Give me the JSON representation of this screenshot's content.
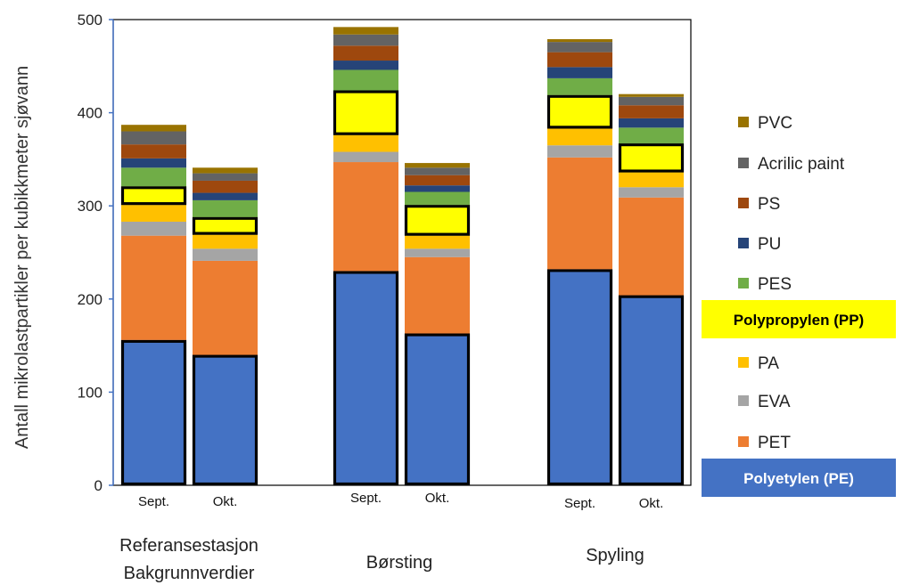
{
  "chart_data": {
    "type": "bar",
    "stacked": true,
    "ylabel": "Antall mikrolastpartikler per kubikkmeter sjøvann",
    "ylim": [
      0,
      500
    ],
    "yticks": [
      0,
      100,
      200,
      300,
      400,
      500
    ],
    "groups": [
      {
        "label": "Referansestasjon\nBakgrunnverdier",
        "label_lines": [
          "Referansestasjon",
          "Bakgrunnverdier"
        ]
      },
      {
        "label": "Børsting",
        "label_lines": [
          "Børsting"
        ]
      },
      {
        "label": "Spyling",
        "label_lines": [
          "Spyling"
        ]
      }
    ],
    "bars": [
      {
        "group": 0,
        "label": "Sept."
      },
      {
        "group": 0,
        "label": "Okt."
      },
      {
        "group": 1,
        "label": "Sept."
      },
      {
        "group": 1,
        "label": "Okt."
      },
      {
        "group": 2,
        "label": "Sept."
      },
      {
        "group": 2,
        "label": "Okt."
      }
    ],
    "series": [
      {
        "name": "Polyetylen (PE)",
        "color": "#4472C4",
        "values": [
          156,
          140,
          230,
          163,
          232,
          204
        ],
        "highlight": true
      },
      {
        "name": "PET",
        "color": "#ED7D31",
        "values": [
          112,
          101,
          117,
          82,
          120,
          105
        ]
      },
      {
        "name": "EVA",
        "color": "#A5A5A5",
        "values": [
          15,
          13,
          11,
          9,
          13,
          11
        ]
      },
      {
        "name": "PA",
        "color": "#FFC000",
        "values": [
          18,
          15,
          18,
          14,
          18,
          16
        ]
      },
      {
        "name": "Polypropylen (PP)",
        "color": "#FFFF00",
        "values": [
          20,
          19,
          48,
          33,
          36,
          31
        ],
        "highlight": true
      },
      {
        "name": "PES",
        "color": "#70AD47",
        "values": [
          20,
          18,
          22,
          14,
          18,
          17
        ]
      },
      {
        "name": "PU",
        "color": "#264478",
        "values": [
          10,
          8,
          10,
          7,
          12,
          10
        ]
      },
      {
        "name": "PS",
        "color": "#9E480E",
        "values": [
          15,
          13,
          16,
          11,
          16,
          14
        ]
      },
      {
        "name": "Acrilic paint",
        "color": "#636363",
        "values": [
          14,
          8,
          12,
          8,
          11,
          9
        ]
      },
      {
        "name": "PVC",
        "color": "#997300",
        "values": [
          7,
          6,
          8,
          5,
          3,
          3
        ]
      }
    ],
    "legend": {
      "position": "right",
      "order": [
        "PVC",
        "Acrilic paint",
        "PS",
        "PU",
        "PES",
        "Polypropylen (PP)",
        "PA",
        "EVA",
        "PET",
        "Polyetylen (PE)"
      ]
    },
    "grid": false
  }
}
